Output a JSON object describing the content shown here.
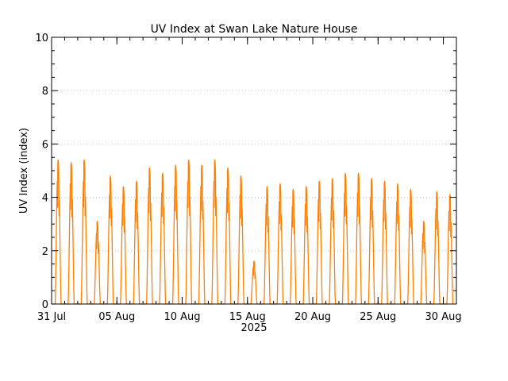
{
  "chart_data": {
    "type": "line",
    "title": "UV Index at Swan Lake Nature House",
    "xlabel": "2025",
    "ylabel": "UV Index (index)",
    "x_start": "2025-07-31",
    "x_end": "2025-08-31",
    "ylim": [
      0,
      10
    ],
    "y_ticks": [
      0,
      2,
      4,
      6,
      8,
      10
    ],
    "x_ticks": [
      {
        "date": "2025-07-31",
        "label": "31 Jul"
      },
      {
        "date": "2025-08-05",
        "label": "05 Aug"
      },
      {
        "date": "2025-08-10",
        "label": "10 Aug"
      },
      {
        "date": "2025-08-15",
        "label": "15 Aug"
      },
      {
        "date": "2025-08-20",
        "label": "20 Aug"
      },
      {
        "date": "2025-08-25",
        "label": "25 Aug"
      },
      {
        "date": "2025-08-30",
        "label": "30 Aug"
      }
    ],
    "grid": "horizontal dotted",
    "series": [
      {
        "color": "#ff7f00",
        "daily_max": {
          "dates": [
            "2025-07-31",
            "2025-08-01",
            "2025-08-02",
            "2025-08-03",
            "2025-08-04",
            "2025-08-05",
            "2025-08-06",
            "2025-08-07",
            "2025-08-08",
            "2025-08-09",
            "2025-08-10",
            "2025-08-11",
            "2025-08-12",
            "2025-08-13",
            "2025-08-14",
            "2025-08-15",
            "2025-08-16",
            "2025-08-17",
            "2025-08-18",
            "2025-08-19",
            "2025-08-20",
            "2025-08-21",
            "2025-08-22",
            "2025-08-23",
            "2025-08-24",
            "2025-08-25",
            "2025-08-26",
            "2025-08-27",
            "2025-08-28",
            "2025-08-29",
            "2025-08-30"
          ],
          "values": [
            5.4,
            5.3,
            5.4,
            3.1,
            4.8,
            4.4,
            4.6,
            5.1,
            4.9,
            5.2,
            5.4,
            5.2,
            5.4,
            5.1,
            4.8,
            1.6,
            4.4,
            4.5,
            4.3,
            4.4,
            4.6,
            4.7,
            4.9,
            4.9,
            4.7,
            4.6,
            4.5,
            4.3,
            3.1,
            4.2,
            4.1
          ]
        }
      }
    ]
  }
}
